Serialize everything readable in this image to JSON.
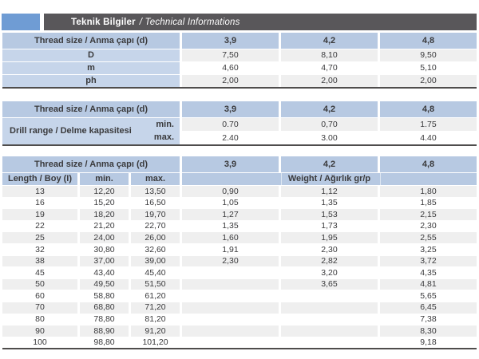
{
  "header": {
    "title_bold": "Teknik Bilgiler",
    "title_italic": "/ Technical Informations"
  },
  "colors": {
    "accent_blue": "#6f9cd4",
    "header_bar_dark": "#59575a",
    "header_cell_blue": "#b7c9e2",
    "label_cell_blue": "#c6d5ea",
    "stripe_gray": "#efefef",
    "text": "#3a3a3c"
  },
  "thread_sizes": [
    "3,9",
    "4,2",
    "4,8"
  ],
  "table1": {
    "header_label": "Thread size / Anma çapı (d)",
    "rows": [
      {
        "label": "D",
        "values": [
          "7,50",
          "8,10",
          "9,50"
        ]
      },
      {
        "label": "m",
        "values": [
          "4,60",
          "4,70",
          "5,10"
        ]
      },
      {
        "label": "ph",
        "values": [
          "2,00",
          "2,00",
          "2,00"
        ]
      }
    ]
  },
  "table2": {
    "header_label": "Thread size / Anma çapı (d)",
    "row_label": "Drill range / Delme kapasitesi",
    "sub_rows": [
      {
        "label": "min.",
        "values": [
          "0.70",
          "0,70",
          "1.75"
        ]
      },
      {
        "label": "max.",
        "values": [
          "2.40",
          "3.00",
          "4.40"
        ]
      }
    ]
  },
  "table3": {
    "header_label": "Thread size / Anma çapı (d)",
    "length_header": "Length / Boy (I)",
    "min_header": "min.",
    "max_header": "max.",
    "weight_header": "Weight / Ağırlık gr/p",
    "rows": [
      {
        "length": "13",
        "min": "12,20",
        "max": "13,50",
        "weights": [
          "0,90",
          "1,12",
          "1,80"
        ]
      },
      {
        "length": "16",
        "min": "15,20",
        "max": "16,50",
        "weights": [
          "1,05",
          "1,35",
          "1,85"
        ]
      },
      {
        "length": "19",
        "min": "18,20",
        "max": "19,70",
        "weights": [
          "1,27",
          "1,53",
          "2,15"
        ]
      },
      {
        "length": "22",
        "min": "21,20",
        "max": "22,70",
        "weights": [
          "1,35",
          "1,73",
          "2,30"
        ]
      },
      {
        "length": "25",
        "min": "24,00",
        "max": "26,00",
        "weights": [
          "1,60",
          "1,95",
          "2,55"
        ]
      },
      {
        "length": "32",
        "min": "30,80",
        "max": "32,60",
        "weights": [
          "1,91",
          "2,30",
          "3,25"
        ]
      },
      {
        "length": "38",
        "min": "37,00",
        "max": "39,00",
        "weights": [
          "2,30",
          "2,82",
          "3,72"
        ]
      },
      {
        "length": "45",
        "min": "43,40",
        "max": "45,40",
        "weights": [
          "",
          "3,20",
          "4,35"
        ]
      },
      {
        "length": "50",
        "min": "49,50",
        "max": "51,50",
        "weights": [
          "",
          "3,65",
          "4,81"
        ]
      },
      {
        "length": "60",
        "min": "58,80",
        "max": "61,20",
        "weights": [
          "",
          "",
          "5,65"
        ]
      },
      {
        "length": "70",
        "min": "68,80",
        "max": "71,20",
        "weights": [
          "",
          "",
          "6,45"
        ]
      },
      {
        "length": "80",
        "min": "78,80",
        "max": "81,20",
        "weights": [
          "",
          "",
          "7,38"
        ]
      },
      {
        "length": "90",
        "min": "88,90",
        "max": "91,20",
        "weights": [
          "",
          "",
          "8,30"
        ]
      },
      {
        "length": "100",
        "min": "98,80",
        "max": "101,20",
        "weights": [
          "",
          "",
          "9,18"
        ]
      }
    ]
  }
}
